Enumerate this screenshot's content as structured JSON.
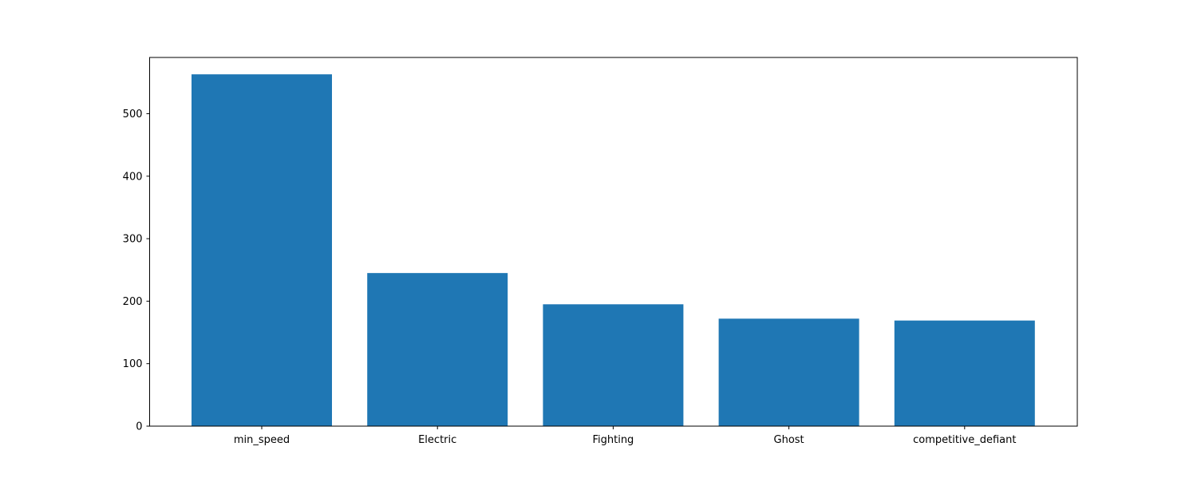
{
  "chart_data": {
    "type": "bar",
    "title": "",
    "xlabel": "",
    "ylabel": "",
    "categories": [
      "min_speed",
      "Electric",
      "Fighting",
      "Ghost",
      "competitive_defiant"
    ],
    "values": [
      563,
      245,
      195,
      172,
      169
    ],
    "ylim": [
      0,
      590
    ],
    "yticks": [
      0,
      100,
      200,
      300,
      400,
      500
    ],
    "grid": false,
    "legend": "none",
    "bar_color": "#1f77b4"
  }
}
